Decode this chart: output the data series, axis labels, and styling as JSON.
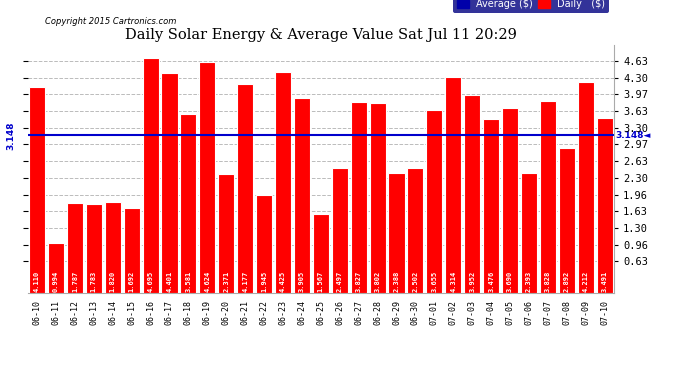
{
  "title": "Daily Solar Energy & Average Value Sat Jul 11 20:29",
  "copyright": "Copyright 2015 Cartronics.com",
  "average_value": 3.148,
  "categories": [
    "06-10",
    "06-11",
    "06-12",
    "06-13",
    "06-14",
    "06-15",
    "06-16",
    "06-17",
    "06-18",
    "06-19",
    "06-20",
    "06-21",
    "06-22",
    "06-23",
    "06-24",
    "06-25",
    "06-26",
    "06-27",
    "06-28",
    "06-29",
    "06-30",
    "07-01",
    "07-02",
    "07-03",
    "07-04",
    "07-05",
    "07-06",
    "07-07",
    "07-08",
    "07-09",
    "07-10"
  ],
  "values": [
    4.11,
    0.994,
    1.787,
    1.783,
    1.82,
    1.692,
    4.695,
    4.401,
    3.581,
    4.624,
    2.371,
    4.177,
    1.945,
    4.425,
    3.905,
    1.567,
    2.497,
    3.827,
    3.802,
    2.388,
    2.502,
    3.655,
    4.314,
    3.952,
    3.476,
    3.69,
    2.393,
    3.828,
    2.892,
    4.212,
    3.491
  ],
  "bar_color": "#ff0000",
  "bar_edge_color": "#ffffff",
  "line_color": "#0000cc",
  "background_color": "#ffffff",
  "plot_bg_color": "#ffffff",
  "grid_color": "#bbbbbb",
  "ylim_min": 0.0,
  "ylim_max": 4.96,
  "yticks": [
    0.63,
    0.96,
    1.3,
    1.63,
    1.96,
    2.3,
    2.63,
    2.97,
    3.3,
    3.63,
    3.97,
    4.3,
    4.63
  ],
  "legend_avg_color": "#0000aa",
  "legend_daily_color": "#ff0000",
  "legend_avg_text": "Average ($)",
  "legend_daily_text": "Daily   ($)"
}
